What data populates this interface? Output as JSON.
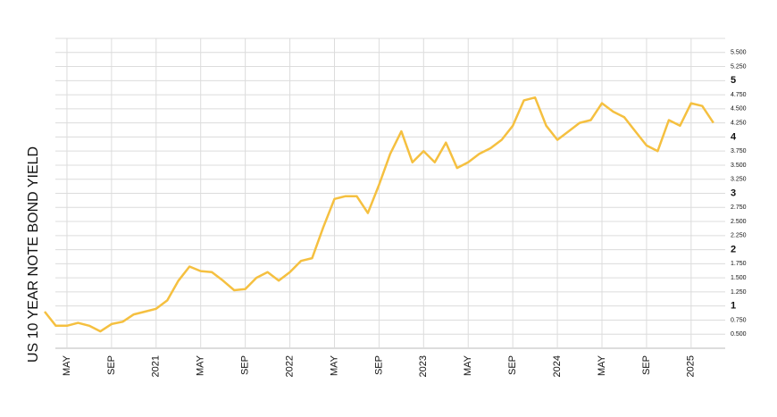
{
  "chart_data": {
    "type": "line",
    "y_label": "US 10 YEAR NOTE BOND YIELD",
    "categories": [
      null,
      null,
      "MAY",
      null,
      null,
      null,
      "SEP",
      null,
      null,
      null,
      "2021",
      null,
      null,
      null,
      "MAY",
      null,
      null,
      null,
      "SEP",
      null,
      null,
      null,
      "2022",
      null,
      null,
      null,
      "MAY",
      null,
      null,
      null,
      "SEP",
      null,
      null,
      null,
      "2023",
      null,
      null,
      null,
      "MAY",
      null,
      null,
      null,
      "SEP",
      null,
      null,
      null,
      "2024",
      null,
      null,
      null,
      "MAY",
      null,
      null,
      null,
      "SEP",
      null,
      null,
      null,
      "2025",
      null,
      null
    ],
    "series": [
      {
        "color": "#f5c040",
        "values": [
          0.9,
          0.65,
          0.65,
          0.7,
          0.65,
          0.55,
          0.68,
          0.72,
          0.85,
          0.9,
          0.95,
          1.1,
          1.45,
          1.7,
          1.62,
          1.6,
          1.45,
          1.28,
          1.3,
          1.5,
          1.6,
          1.45,
          1.6,
          1.8,
          1.85,
          2.4,
          2.9,
          2.95,
          2.95,
          2.65,
          3.15,
          3.7,
          4.1,
          3.55,
          3.75,
          3.55,
          3.9,
          3.45,
          3.55,
          3.7,
          3.8,
          3.95,
          4.2,
          4.65,
          4.7,
          4.2,
          3.95,
          4.1,
          4.25,
          4.3,
          4.6,
          4.45,
          4.35,
          4.1,
          3.85,
          3.75,
          4.3,
          4.2,
          4.6,
          4.55,
          4.25
        ]
      }
    ],
    "ylim": [
      0.25,
      5.75
    ],
    "yticks": [
      {
        "value": 0.5,
        "label": "0.500"
      },
      {
        "value": 0.75,
        "label": "0.750"
      },
      1,
      {
        "value": 1.25,
        "label": "1.250"
      },
      {
        "value": 1.5,
        "label": "1.500"
      },
      {
        "value": 1.75,
        "label": "1.750"
      },
      2,
      {
        "value": 2.25,
        "label": "2.250"
      },
      {
        "value": 2.5,
        "label": "2.500"
      },
      {
        "value": 2.75,
        "label": "2.750"
      },
      3,
      {
        "value": 3.25,
        "label": "3.250"
      },
      {
        "value": 3.5,
        "label": "3.500"
      },
      {
        "value": 3.75,
        "label": "3.750"
      },
      4,
      {
        "value": 4.25,
        "label": "4.250"
      },
      {
        "value": 4.5,
        "label": "4.500"
      },
      {
        "value": 4.75,
        "label": "4.750"
      },
      5,
      {
        "value": 5.25,
        "label": "5.250"
      },
      {
        "value": 5.5,
        "label": "5.500"
      }
    ],
    "grid": true
  }
}
